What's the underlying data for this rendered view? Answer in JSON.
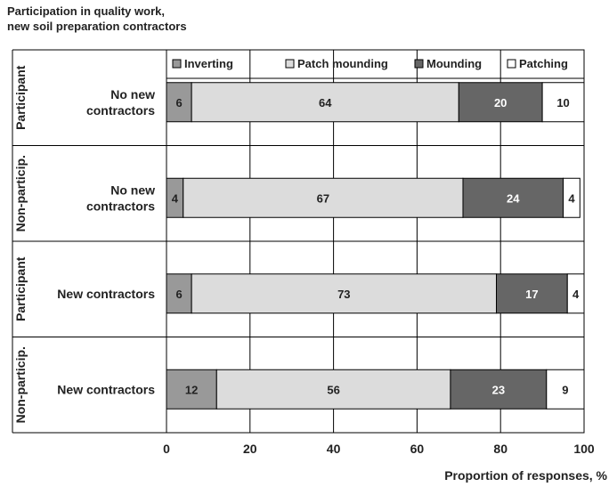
{
  "title_lines": [
    "Participation in quality work,",
    "new soil preparation contractors"
  ],
  "chart_data": {
    "type": "bar",
    "orientation": "horizontal",
    "stacked": true,
    "xlabel": "Proportion of responses, %",
    "xlim": [
      0,
      100
    ],
    "xticks": [
      0,
      20,
      40,
      60,
      80,
      100
    ],
    "grid": "vertical",
    "legend_position": "top",
    "groups": [
      {
        "group_label": "Participant",
        "category": "No new contractors",
        "category_lines": [
          "No new",
          "contractors"
        ]
      },
      {
        "group_label": "Non-particip.",
        "category": "No new contractors",
        "category_lines": [
          "No new",
          "contractors"
        ]
      },
      {
        "group_label": "Participant",
        "category": "New contractors",
        "category_lines": [
          "New contractors"
        ]
      },
      {
        "group_label": "Non-particip.",
        "category": "New contractors",
        "category_lines": [
          "New contractors"
        ]
      }
    ],
    "series": [
      {
        "name": "Inverting",
        "color": "#999999",
        "label_color": "#222222",
        "values": [
          6,
          4,
          6,
          12
        ]
      },
      {
        "name": "Patch mounding",
        "color": "#dcdcdc",
        "label_color": "#222222",
        "values": [
          64,
          67,
          73,
          56
        ]
      },
      {
        "name": "Mounding",
        "color": "#666666",
        "label_color": "#ffffff",
        "values": [
          20,
          24,
          17,
          23
        ]
      },
      {
        "name": "Patching",
        "color": "#ffffff",
        "label_color": "#222222",
        "values": [
          10,
          4,
          4,
          9
        ]
      }
    ]
  }
}
